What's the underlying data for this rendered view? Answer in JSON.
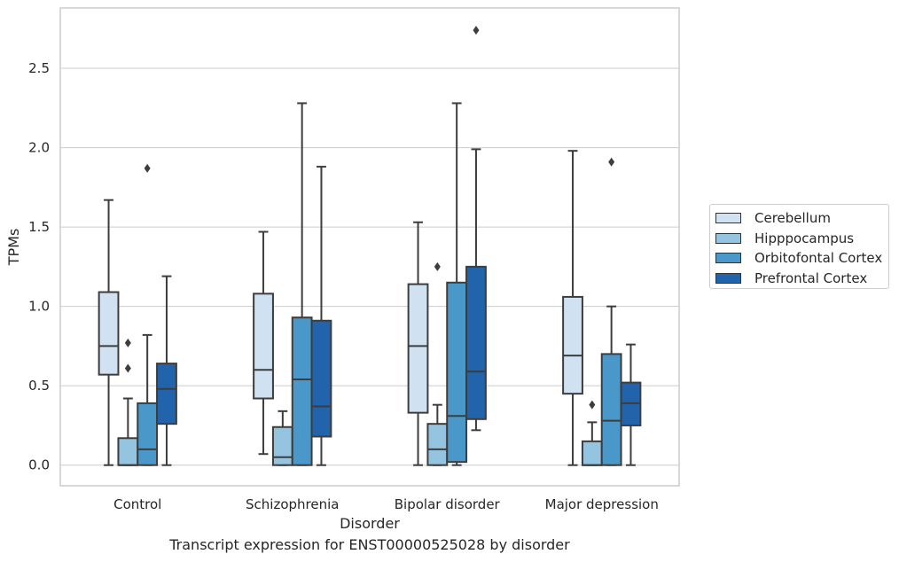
{
  "chart_data": {
    "type": "box",
    "title": "",
    "xlabel": "Disorder",
    "ylabel": "TPMs",
    "caption": "Transcript expression for ENST00000525028 by disorder",
    "ylim": [
      -0.13,
      2.88
    ],
    "yticks": [
      "0.0",
      "0.5",
      "1.0",
      "1.5",
      "2.0",
      "2.5"
    ],
    "categories": [
      "Control",
      "Schizophrenia",
      "Bipolar disorder",
      "Major depression"
    ],
    "grid": "horizontal",
    "legend_position": "outside-right",
    "series": [
      {
        "name": "Cerebellum",
        "color": "#d0e1f2",
        "boxes": [
          {
            "whislo": 0.0,
            "q1": 0.57,
            "med": 0.75,
            "q3": 1.09,
            "whishi": 1.67,
            "fliers": []
          },
          {
            "whislo": 0.07,
            "q1": 0.42,
            "med": 0.6,
            "q3": 1.08,
            "whishi": 1.47,
            "fliers": []
          },
          {
            "whislo": 0.0,
            "q1": 0.33,
            "med": 0.75,
            "q3": 1.14,
            "whishi": 1.53,
            "fliers": []
          },
          {
            "whislo": 0.0,
            "q1": 0.45,
            "med": 0.69,
            "q3": 1.06,
            "whishi": 1.98,
            "fliers": []
          }
        ]
      },
      {
        "name": "Hipppocampus",
        "color": "#94c4df",
        "boxes": [
          {
            "whislo": 0.0,
            "q1": 0.0,
            "med": 0.0,
            "q3": 0.17,
            "whishi": 0.42,
            "fliers": [
              0.61,
              0.77
            ]
          },
          {
            "whislo": 0.0,
            "q1": 0.0,
            "med": 0.05,
            "q3": 0.24,
            "whishi": 0.34,
            "fliers": []
          },
          {
            "whislo": 0.0,
            "q1": 0.0,
            "med": 0.1,
            "q3": 0.26,
            "whishi": 0.38,
            "fliers": [
              1.25
            ]
          },
          {
            "whislo": 0.0,
            "q1": 0.0,
            "med": 0.0,
            "q3": 0.15,
            "whishi": 0.27,
            "fliers": [
              0.38
            ]
          }
        ]
      },
      {
        "name": "Orbitofontal Cortex",
        "color": "#4a98c9",
        "boxes": [
          {
            "whislo": 0.0,
            "q1": 0.0,
            "med": 0.1,
            "q3": 0.39,
            "whishi": 0.82,
            "fliers": [
              1.87
            ]
          },
          {
            "whislo": 0.0,
            "q1": 0.0,
            "med": 0.54,
            "q3": 0.93,
            "whishi": 2.28,
            "fliers": []
          },
          {
            "whislo": 0.0,
            "q1": 0.02,
            "med": 0.31,
            "q3": 1.15,
            "whishi": 2.28,
            "fliers": []
          },
          {
            "whislo": 0.0,
            "q1": 0.0,
            "med": 0.28,
            "q3": 0.7,
            "whishi": 1.0,
            "fliers": [
              1.91
            ]
          }
        ]
      },
      {
        "name": "Prefrontal Cortex",
        "color": "#2164ab",
        "boxes": [
          {
            "whislo": 0.0,
            "q1": 0.26,
            "med": 0.48,
            "q3": 0.64,
            "whishi": 1.19,
            "fliers": []
          },
          {
            "whislo": 0.0,
            "q1": 0.18,
            "med": 0.37,
            "q3": 0.91,
            "whishi": 1.88,
            "fliers": []
          },
          {
            "whislo": 0.22,
            "q1": 0.29,
            "med": 0.59,
            "q3": 1.25,
            "whishi": 1.99,
            "fliers": [
              2.74
            ]
          },
          {
            "whislo": 0.0,
            "q1": 0.25,
            "med": 0.39,
            "q3": 0.52,
            "whishi": 0.76,
            "fliers": []
          }
        ]
      }
    ]
  }
}
